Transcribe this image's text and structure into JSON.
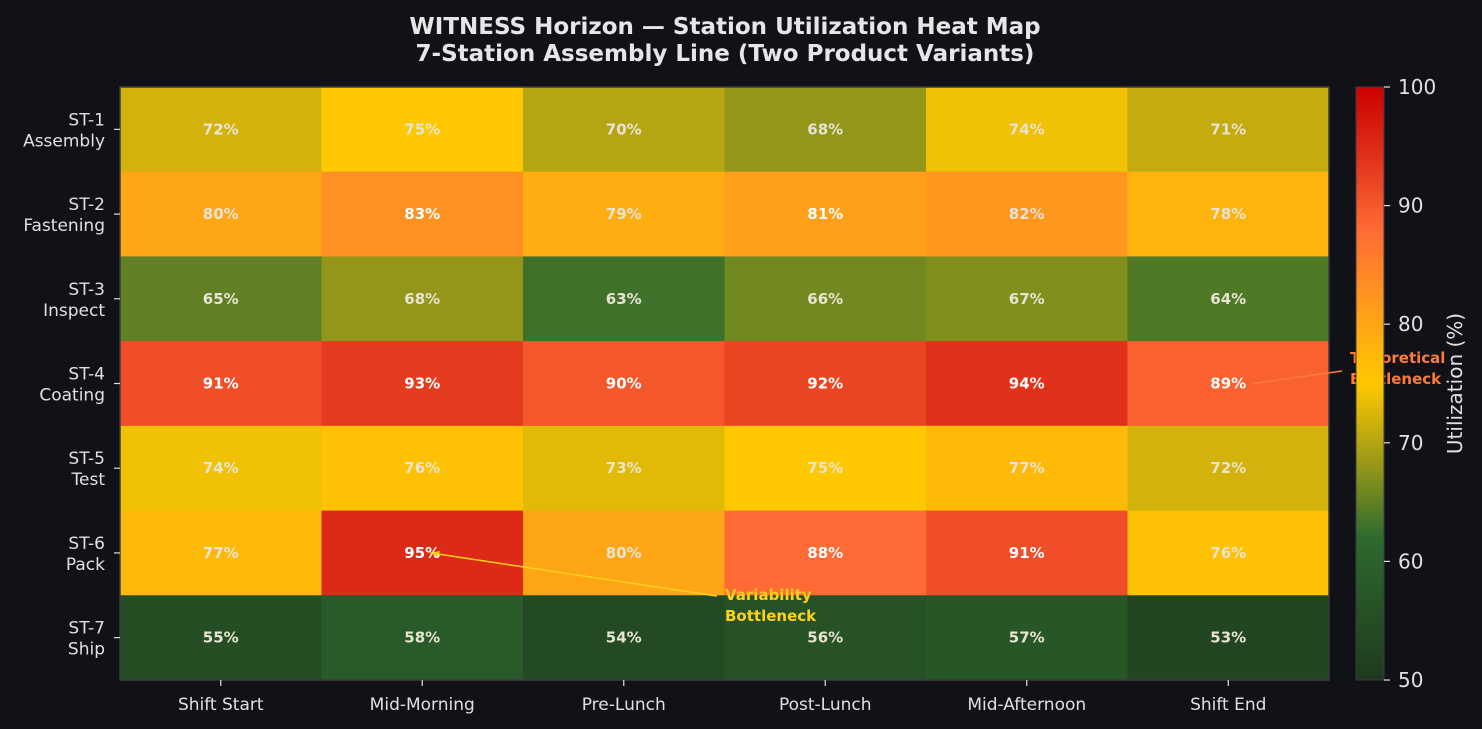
{
  "chart_data": {
    "type": "heatmap",
    "title_lines": [
      "WITNESS Horizon — Station Utilization Heat Map",
      "7-Station Assembly Line (Two Product Variants)"
    ],
    "rows": [
      [
        "ST-1",
        "Assembly"
      ],
      [
        "ST-2",
        "Fastening"
      ],
      [
        "ST-3",
        "Inspect"
      ],
      [
        "ST-4",
        "Coating"
      ],
      [
        "ST-5",
        "Test"
      ],
      [
        "ST-6",
        "Pack"
      ],
      [
        "ST-7",
        "Ship"
      ]
    ],
    "columns": [
      "Shift Start",
      "Mid-Morning",
      "Pre-Lunch",
      "Post-Lunch",
      "Mid-Afternoon",
      "Shift End"
    ],
    "values": [
      [
        72,
        75,
        70,
        68,
        74,
        71
      ],
      [
        80,
        83,
        79,
        81,
        82,
        78
      ],
      [
        65,
        68,
        63,
        66,
        67,
        64
      ],
      [
        91,
        93,
        90,
        92,
        94,
        89
      ],
      [
        74,
        76,
        73,
        75,
        77,
        72
      ],
      [
        77,
        95,
        80,
        88,
        91,
        76
      ],
      [
        55,
        58,
        54,
        56,
        57,
        53
      ]
    ],
    "value_suffix": "%",
    "colorbar": {
      "label": "Utilization (%)",
      "range": [
        50,
        100
      ],
      "ticks": [
        50,
        60,
        70,
        80,
        90,
        100
      ],
      "stops": [
        {
          "v": 50,
          "c": "#1e3a1e"
        },
        {
          "v": 62,
          "c": "#2e6a2e"
        },
        {
          "v": 70,
          "c": "#b5a512"
        },
        {
          "v": 75,
          "c": "#ffc800"
        },
        {
          "v": 81,
          "c": "#ff9f1a"
        },
        {
          "v": 88,
          "c": "#ff6a35"
        },
        {
          "v": 94,
          "c": "#e0321a"
        },
        {
          "v": 100,
          "c": "#cc0000"
        }
      ]
    },
    "annotations": [
      {
        "lines": [
          "Theoretical",
          "Bottleneck"
        ],
        "row": 3,
        "col": 5,
        "color": "#ff7a3a"
      },
      {
        "lines": [
          "Variability",
          "Bottleneck"
        ],
        "row": 5,
        "col": 1,
        "color": "#ffd21a"
      }
    ],
    "background": "#111218"
  }
}
